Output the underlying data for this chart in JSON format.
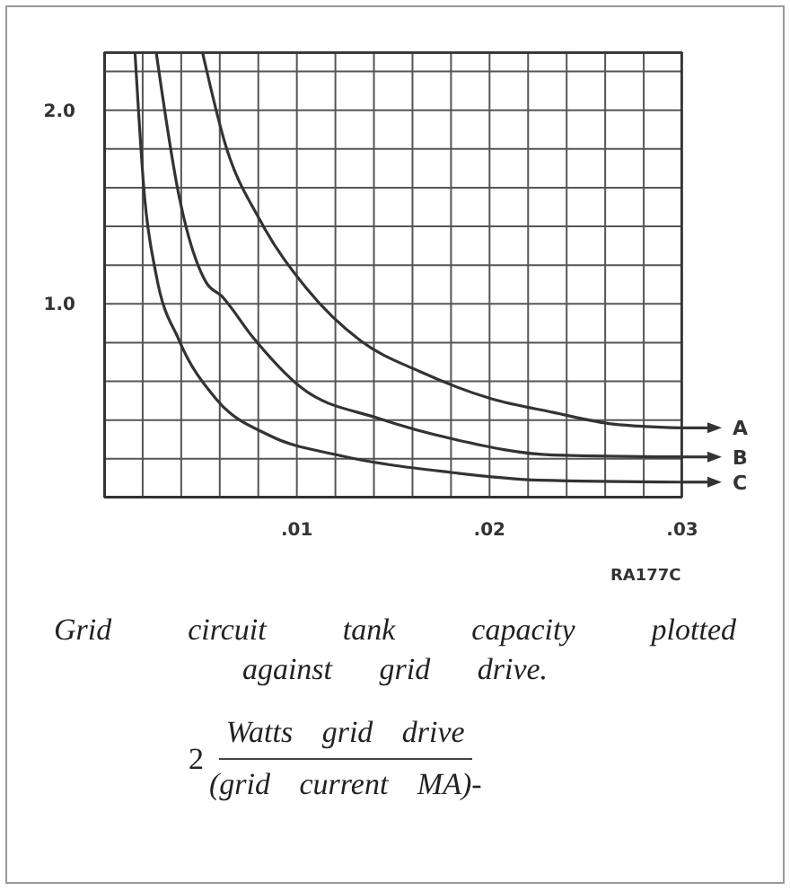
{
  "chart_data": {
    "type": "line",
    "title": "Grid circuit tank capacity plotted against grid drive.",
    "annotations": [
      "RA177C",
      "2",
      "Watts grid drive",
      "(grid current MA)-"
    ],
    "xlim": [
      0,
      0.03
    ],
    "ylim": [
      0,
      2.3
    ],
    "xticks": [
      {
        "value": 0,
        "label": null
      },
      {
        "value": 0.002,
        "label": null
      },
      {
        "value": 0.004,
        "label": null
      },
      {
        "value": 0.006,
        "label": null
      },
      {
        "value": 0.008,
        "label": null
      },
      {
        "value": 0.01,
        "label": ".01"
      },
      {
        "value": 0.012,
        "label": null
      },
      {
        "value": 0.014,
        "label": null
      },
      {
        "value": 0.016,
        "label": null
      },
      {
        "value": 0.018,
        "label": null
      },
      {
        "value": 0.02,
        "label": ".02"
      },
      {
        "value": 0.022,
        "label": null
      },
      {
        "value": 0.024,
        "label": null
      },
      {
        "value": 0.026,
        "label": null
      },
      {
        "value": 0.028,
        "label": null
      },
      {
        "value": 0.03,
        "label": ".03"
      }
    ],
    "yticks": [
      {
        "value": 0,
        "label": null
      },
      {
        "value": 0.2,
        "label": null
      },
      {
        "value": 0.4,
        "label": null
      },
      {
        "value": 0.6,
        "label": null
      },
      {
        "value": 0.8,
        "label": null
      },
      {
        "value": 1.0,
        "label": "1.0"
      },
      {
        "value": 1.2,
        "label": null
      },
      {
        "value": 1.4,
        "label": null
      },
      {
        "value": 1.6,
        "label": null
      },
      {
        "value": 1.8,
        "label": null
      },
      {
        "value": 2.0,
        "label": "2.0"
      },
      {
        "value": 2.2,
        "label": null
      }
    ],
    "grid": true,
    "legend": "right",
    "series": [
      {
        "name": "A",
        "color": "#333333",
        "x": [
          0.0051,
          0.0063,
          0.0081,
          0.0105,
          0.0133,
          0.0164,
          0.0201,
          0.0233,
          0.0264,
          0.03
        ],
        "values": [
          2.3,
          1.82,
          1.43,
          1.08,
          0.81,
          0.65,
          0.51,
          0.44,
          0.38,
          0.36
        ]
      },
      {
        "name": "B",
        "color": "#333333",
        "x": [
          0.0027,
          0.0039,
          0.0053,
          0.0061,
          0.0077,
          0.0102,
          0.0142,
          0.0182,
          0.0233,
          0.03
        ],
        "values": [
          2.3,
          1.55,
          1.11,
          1.04,
          0.83,
          0.57,
          0.41,
          0.3,
          0.22,
          0.21
        ]
      },
      {
        "name": "C",
        "color": "#333333",
        "x": [
          0.0016,
          0.0021,
          0.0027,
          0.0039,
          0.0058,
          0.0086,
          0.0121,
          0.018,
          0.0226,
          0.03
        ],
        "values": [
          2.3,
          1.55,
          1.15,
          0.81,
          0.51,
          0.32,
          0.22,
          0.13,
          0.09,
          0.08
        ]
      }
    ]
  }
}
